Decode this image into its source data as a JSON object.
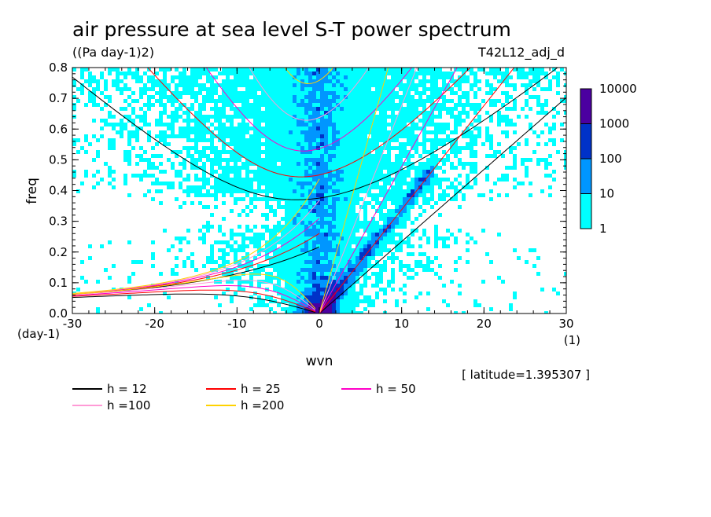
{
  "chart_data": {
    "type": "heatmap",
    "title": "air pressure at sea level S-T power spectrum",
    "units": "((Pa day-1)2)",
    "run_label": "T42L12_adj_d",
    "xlabel": "wvn",
    "ylabel": "freq",
    "x_unit": "(1)",
    "y_unit": "(day-1)",
    "xlim": [
      -30,
      30
    ],
    "ylim": [
      0,
      0.8
    ],
    "x_ticks": [
      -30,
      -20,
      -10,
      0,
      10,
      20,
      30
    ],
    "x_tick_labels": [
      "-30",
      "-20",
      "-10",
      "0",
      "10",
      "20",
      "30"
    ],
    "y_ticks": [
      0,
      0.1,
      0.2,
      0.3,
      0.4,
      0.5,
      0.6,
      0.7,
      0.8
    ],
    "y_tick_labels": [
      "0.0",
      "0.1",
      "0.2",
      "0.3",
      "0.4",
      "0.5",
      "0.6",
      "0.7",
      "0.8"
    ],
    "latitude_note": "[ latitude=1.395307 ]",
    "colorbar": {
      "levels": [
        1,
        10,
        100,
        1000,
        10000
      ],
      "labels": [
        "1",
        "10",
        "100",
        "1000",
        "10000"
      ],
      "colors": [
        "#00ffff",
        "#0096ff",
        "#0032c8",
        "#4b00a0"
      ],
      "scale": "log"
    },
    "dispersion_curves": [
      {
        "label": "h = 12",
        "h": 12,
        "color": "#000000"
      },
      {
        "label": "h = 25",
        "h": 25,
        "color": "#ff0000"
      },
      {
        "label": "h = 50",
        "h": 50,
        "color": "#ff00c8"
      },
      {
        "label": "h =100",
        "h": 100,
        "color": "#ff9ad6"
      },
      {
        "label": "h =200",
        "h": 200,
        "color": "#ffd200"
      }
    ],
    "spectrum_features": [
      {
        "region": "kelvin-wave ridge (wvn > 0)",
        "path_wvn": [
          0,
          3,
          6,
          9,
          12
        ],
        "path_freq": [
          0.0,
          0.12,
          0.22,
          0.3,
          0.38
        ],
        "level": "10-1000"
      },
      {
        "region": "low wavenumber column",
        "wvn_range": [
          -3,
          3
        ],
        "freq_range": [
          0,
          0.8
        ],
        "level": "10-100"
      },
      {
        "region": "origin peak",
        "wvn_range": [
          -2,
          2
        ],
        "freq_range": [
          0,
          0.05
        ],
        "level": "1000-10000"
      },
      {
        "region": "broad background",
        "wvn_range": [
          -28,
          28
        ],
        "freq_range": [
          0,
          0.8
        ],
        "level": "1-10"
      }
    ]
  }
}
